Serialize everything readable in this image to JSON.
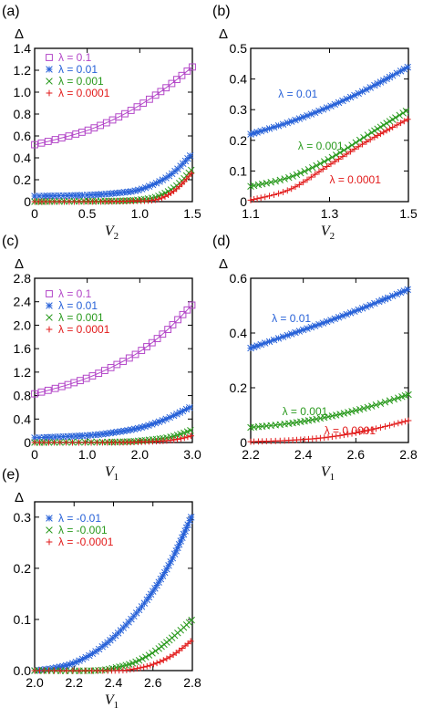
{
  "colors": {
    "purple": "#b347c8",
    "blue": "#2862d8",
    "green": "#2a9a1e",
    "red": "#e21b1b"
  },
  "chart_data": [
    {
      "panel": "(a)",
      "type": "scatter",
      "ylabel": "Δ",
      "xlabel_var": "V",
      "xlabel_sub": "2",
      "xlim": [
        0,
        1.5
      ],
      "ylim": [
        0,
        1.4
      ],
      "xticks": [
        0,
        0.5,
        1.0,
        1.5
      ],
      "xtick_labels": [
        "0",
        "0.5",
        "1.0",
        "1.5"
      ],
      "yticks": [
        0,
        0.2,
        0.4,
        0.6,
        0.8,
        1.0,
        1.2,
        1.4
      ],
      "ytick_labels": [
        "0",
        "0.2",
        "0.4",
        "0.6",
        "0.8",
        "1.0",
        "1.2",
        "1.4"
      ],
      "legend": "top-left",
      "series": [
        {
          "name": "λ = 0.1",
          "marker": "square",
          "color": "purple",
          "x": [
            0,
            0.25,
            0.5,
            0.75,
            1.0,
            1.25,
            1.5
          ],
          "y": [
            0.52,
            0.58,
            0.65,
            0.75,
            0.88,
            1.04,
            1.23
          ]
        },
        {
          "name": "λ = 0.01",
          "marker": "star",
          "color": "blue",
          "x": [
            0,
            0.5,
            0.8,
            1.0,
            1.2,
            1.35,
            1.5
          ],
          "y": [
            0.05,
            0.06,
            0.08,
            0.11,
            0.19,
            0.29,
            0.44
          ]
        },
        {
          "name": "λ = 0.001",
          "marker": "x",
          "color": "green",
          "x": [
            0,
            0.6,
            0.9,
            1.1,
            1.2,
            1.3,
            1.4,
            1.5
          ],
          "y": [
            0.0,
            0.005,
            0.01,
            0.03,
            0.06,
            0.11,
            0.19,
            0.3
          ]
        },
        {
          "name": "λ = 0.0001",
          "marker": "plus",
          "color": "red",
          "x": [
            0,
            0.6,
            0.9,
            1.1,
            1.2,
            1.3,
            1.4,
            1.5
          ],
          "y": [
            0.0,
            0.0,
            0.005,
            0.01,
            0.03,
            0.08,
            0.16,
            0.27
          ]
        }
      ]
    },
    {
      "panel": "(b)",
      "type": "scatter",
      "ylabel": "Δ",
      "xlabel_var": "V",
      "xlabel_sub": "2",
      "xlim": [
        1.1,
        1.5
      ],
      "ylim": [
        0,
        0.5
      ],
      "xticks": [
        1.1,
        1.3,
        1.5
      ],
      "xtick_labels": [
        "1.1",
        "1.3",
        "1.5"
      ],
      "yticks": [
        0,
        0.1,
        0.2,
        0.3,
        0.4,
        0.5
      ],
      "ytick_labels": [
        "0",
        "0.1",
        "0.2",
        "0.3",
        "0.4",
        "0.5"
      ],
      "series": [
        {
          "name": "λ = 0.01",
          "marker": "star",
          "color": "blue",
          "x": [
            1.1,
            1.2,
            1.3,
            1.4,
            1.5
          ],
          "y": [
            0.22,
            0.26,
            0.31,
            0.37,
            0.44
          ]
        },
        {
          "name": "λ = 0.001",
          "marker": "x",
          "color": "green",
          "x": [
            1.1,
            1.2,
            1.3,
            1.4,
            1.5
          ],
          "y": [
            0.05,
            0.08,
            0.14,
            0.22,
            0.3
          ]
        },
        {
          "name": "λ = 0.0001",
          "marker": "plus",
          "color": "red",
          "x": [
            1.1,
            1.2,
            1.3,
            1.4,
            1.5
          ],
          "y": [
            0.005,
            0.04,
            0.12,
            0.2,
            0.27
          ]
        }
      ],
      "annotations": [
        {
          "text": "λ = 0.01",
          "color": "blue",
          "x": 1.17,
          "y": 0.34
        },
        {
          "text": "λ = 0.001",
          "color": "green",
          "x": 1.22,
          "y": 0.17
        },
        {
          "text": "λ = 0.0001",
          "color": "red",
          "x": 1.3,
          "y": 0.06
        }
      ]
    },
    {
      "panel": "(c)",
      "type": "scatter",
      "ylabel": "Δ",
      "xlabel_var": "V",
      "xlabel_sub": "1",
      "xlim": [
        0,
        3.0
      ],
      "ylim": [
        0,
        2.8
      ],
      "xticks": [
        0,
        1.0,
        2.0,
        3.0
      ],
      "xtick_labels": [
        "0",
        "1.0",
        "2.0",
        "3.0"
      ],
      "yticks": [
        0,
        0.4,
        0.8,
        1.2,
        1.6,
        2.0,
        2.4,
        2.8
      ],
      "ytick_labels": [
        "0",
        "0.4",
        "0.8",
        "1.2",
        "1.6",
        "2.0",
        "2.4",
        "2.8"
      ],
      "legend": "top-left",
      "series": [
        {
          "name": "λ = 0.1",
          "marker": "square",
          "color": "purple",
          "x": [
            0,
            0.5,
            1.0,
            1.5,
            2.0,
            2.5,
            3.0
          ],
          "y": [
            0.83,
            0.95,
            1.1,
            1.3,
            1.55,
            1.9,
            2.35
          ]
        },
        {
          "name": "λ = 0.01",
          "marker": "star",
          "color": "blue",
          "x": [
            0,
            1.0,
            1.5,
            2.0,
            2.5,
            3.0
          ],
          "y": [
            0.08,
            0.12,
            0.17,
            0.25,
            0.4,
            0.62
          ]
        },
        {
          "name": "λ = 0.001",
          "marker": "x",
          "color": "green",
          "x": [
            0,
            1.5,
            2.0,
            2.5,
            2.8,
            3.0
          ],
          "y": [
            0.0,
            0.01,
            0.03,
            0.08,
            0.15,
            0.22
          ]
        },
        {
          "name": "λ = 0.0001",
          "marker": "plus",
          "color": "red",
          "x": [
            0,
            1.5,
            2.0,
            2.5,
            2.8,
            3.0
          ],
          "y": [
            0.0,
            0.0,
            0.01,
            0.03,
            0.07,
            0.12
          ]
        }
      ]
    },
    {
      "panel": "(d)",
      "type": "scatter",
      "ylabel": "Δ",
      "xlabel_var": "V",
      "xlabel_sub": "1",
      "xlim": [
        2.2,
        2.8
      ],
      "ylim": [
        0,
        0.6
      ],
      "xticks": [
        2.2,
        2.4,
        2.6,
        2.8
      ],
      "xtick_labels": [
        "2.2",
        "2.4",
        "2.6",
        "2.8"
      ],
      "yticks": [
        0,
        0.2,
        0.4,
        0.6
      ],
      "ytick_labels": [
        "0",
        "0.2",
        "0.4",
        "0.6"
      ],
      "series": [
        {
          "name": "λ = 0.01",
          "marker": "star",
          "color": "blue",
          "x": [
            2.2,
            2.35,
            2.5,
            2.65,
            2.8
          ],
          "y": [
            0.345,
            0.395,
            0.445,
            0.5,
            0.56
          ]
        },
        {
          "name": "λ = 0.001",
          "marker": "x",
          "color": "green",
          "x": [
            2.2,
            2.35,
            2.5,
            2.65,
            2.8
          ],
          "y": [
            0.055,
            0.07,
            0.095,
            0.13,
            0.175
          ]
        },
        {
          "name": "λ = 0.0001",
          "marker": "plus",
          "color": "red",
          "x": [
            2.2,
            2.35,
            2.5,
            2.65,
            2.8
          ],
          "y": [
            0.003,
            0.008,
            0.02,
            0.045,
            0.08
          ]
        }
      ],
      "annotations": [
        {
          "text": "λ = 0.01",
          "color": "blue",
          "x": 2.28,
          "y": 0.44
        },
        {
          "text": "λ = 0.001",
          "color": "green",
          "x": 2.32,
          "y": 0.1
        },
        {
          "text": "λ = 0.0001",
          "color": "red",
          "x": 2.48,
          "y": 0.03
        }
      ]
    },
    {
      "panel": "(e)",
      "type": "scatter",
      "ylabel": "Δ",
      "xlabel_var": "V",
      "xlabel_sub": "1",
      "xlim": [
        2.0,
        2.8
      ],
      "ylim": [
        0,
        0.33
      ],
      "xticks": [
        2.0,
        2.2,
        2.4,
        2.6,
        2.8
      ],
      "xtick_labels": [
        "2.0",
        "2.2",
        "2.4",
        "2.6",
        "2.8"
      ],
      "yticks": [
        0,
        0.1,
        0.2,
        0.3
      ],
      "ytick_labels": [
        "0.0",
        "0.1",
        "0.2",
        "0.3"
      ],
      "legend": "top-left",
      "series": [
        {
          "name": "λ = -0.01",
          "marker": "star",
          "color": "blue",
          "x": [
            2.0,
            2.1,
            2.2,
            2.3,
            2.4,
            2.5,
            2.6,
            2.7,
            2.8
          ],
          "y": [
            0.0,
            0.005,
            0.015,
            0.035,
            0.065,
            0.105,
            0.155,
            0.22,
            0.305
          ]
        },
        {
          "name": "λ = -0.001",
          "marker": "x",
          "color": "green",
          "x": [
            2.0,
            2.3,
            2.4,
            2.5,
            2.6,
            2.7,
            2.8
          ],
          "y": [
            0.0,
            0.0,
            0.005,
            0.015,
            0.035,
            0.065,
            0.1
          ]
        },
        {
          "name": "λ = -0.0001",
          "marker": "plus",
          "color": "red",
          "x": [
            2.0,
            2.4,
            2.5,
            2.6,
            2.7,
            2.8
          ],
          "y": [
            0.0,
            0.0,
            0.003,
            0.012,
            0.03,
            0.06
          ]
        }
      ]
    }
  ]
}
